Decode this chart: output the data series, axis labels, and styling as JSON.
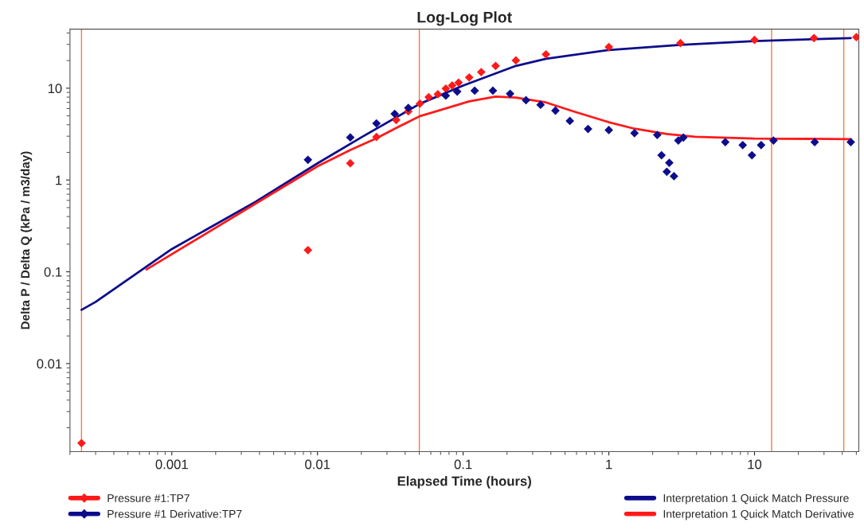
{
  "chart_data": {
    "type": "scatter",
    "title": "Log-Log Plot",
    "xlabel": "Elapsed Time (hours)",
    "ylabel": "Delta P / Delta Q (kPa / m3/day)",
    "log": "xy",
    "grid": false,
    "legend": "bottom",
    "xlim": [
      0.0002,
      52
    ],
    "ylim": [
      0.0011,
      44
    ],
    "xticks": [
      0.001,
      0.01,
      0.1,
      1,
      10
    ],
    "yticks": [
      0.01,
      0.1,
      1,
      10
    ],
    "ref_lines": [
      {
        "axis": "x",
        "value": 0.00024,
        "color": "#f07f3c"
      },
      {
        "axis": "x",
        "value": 0.05,
        "color": "#f07f3c"
      },
      {
        "axis": "x",
        "value": 13.1,
        "color": "#f07f3c"
      },
      {
        "axis": "x",
        "value": 41,
        "color": "#f07f3c"
      }
    ],
    "series": [
      {
        "name": "Pressure #1:TP7",
        "marker": "diamond",
        "color": "#ff1a1a",
        "x": [
          0.00024,
          0.0086,
          0.0168,
          0.0254,
          0.0347,
          0.042,
          0.0505,
          0.058,
          0.067,
          0.076,
          0.084,
          0.093,
          0.11,
          0.133,
          0.167,
          0.23,
          0.37,
          1.0,
          3.1,
          10,
          25.6,
          50
        ],
        "values": [
          0.00136,
          0.172,
          1.52,
          2.94,
          4.5,
          5.6,
          6.8,
          8.0,
          8.6,
          9.9,
          10.7,
          11.5,
          13.1,
          15.0,
          17.5,
          20.1,
          23.4,
          28.1,
          31,
          33.6,
          35.2,
          36
        ]
      },
      {
        "name": "Pressure #1 Derivative:TP7",
        "marker": "diamond",
        "color": "#0d0d8c",
        "x": [
          0.0086,
          0.0168,
          0.0254,
          0.0339,
          0.042,
          0.076,
          0.091,
          0.12,
          0.16,
          0.21,
          0.27,
          0.34,
          0.43,
          0.54,
          0.72,
          1.0,
          1.5,
          2.15,
          2.3,
          2.5,
          2.6,
          2.8,
          3.0,
          3.25,
          6.3,
          8.3,
          9.6,
          11.1,
          13.5,
          25.9,
          45.8
        ],
        "values": [
          1.66,
          2.91,
          4.14,
          5.26,
          6.1,
          8.3,
          9.2,
          9.4,
          9.4,
          8.7,
          7.4,
          6.6,
          5.7,
          4.4,
          3.6,
          3.5,
          3.24,
          3.1,
          1.86,
          1.23,
          1.54,
          1.1,
          2.69,
          2.9,
          2.59,
          2.4,
          1.86,
          2.4,
          2.69,
          2.59,
          2.59
        ]
      },
      {
        "name": "Interpretation 1 Quick Match Pressure",
        "type": "line",
        "marker": "none",
        "color": "#0d0d8c",
        "x": [
          0.00024,
          0.0003,
          0.001,
          0.00377,
          0.01,
          0.0203,
          0.0505,
          0.1,
          0.23,
          0.37,
          1.0,
          3.1,
          10,
          45.8
        ],
        "values": [
          0.0385,
          0.047,
          0.177,
          0.58,
          1.52,
          2.96,
          6.77,
          10.7,
          17.5,
          20.9,
          26.1,
          29.6,
          32.6,
          35.2
        ]
      },
      {
        "name": "Interpretation 1 Quick Match Derivative",
        "type": "line",
        "marker": "none",
        "color": "#ff1a1a",
        "x": [
          0.00067,
          0.01,
          0.0168,
          0.0254,
          0.0356,
          0.0505,
          0.057,
          0.11,
          0.167,
          0.23,
          0.37,
          0.59,
          1.0,
          1.5,
          2.5,
          3.9,
          10,
          45.8
        ],
        "values": [
          0.106,
          1.41,
          2.12,
          2.85,
          3.76,
          4.97,
          5.25,
          7.2,
          8.1,
          7.9,
          7.0,
          5.5,
          4.26,
          3.62,
          3.17,
          2.96,
          2.83,
          2.79
        ]
      }
    ]
  }
}
